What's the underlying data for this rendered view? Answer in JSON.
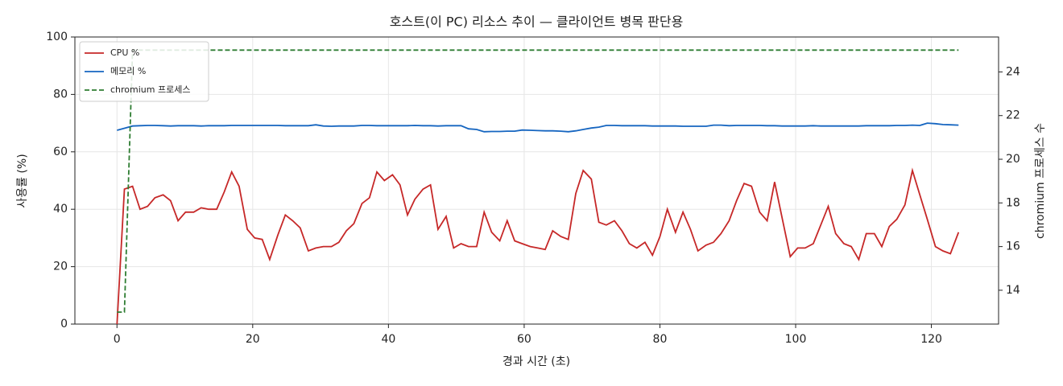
{
  "chart_data": {
    "type": "line",
    "title": "호스트(이 PC) 리소스 추이 — 클라이언트 병목 판단용",
    "x_label": "경과 시간 (초)",
    "y_label": "사용률 (%)",
    "y2_label": "chromium 프로세스 수",
    "x": [
      0,
      1.1,
      2.3,
      3.4,
      4.5,
      5.6,
      6.8,
      7.9,
      9.0,
      10.1,
      11.3,
      12.4,
      13.5,
      14.7,
      15.8,
      16.9,
      18.0,
      19.2,
      20.3,
      21.4,
      22.5,
      23.7,
      24.8,
      25.9,
      27.0,
      28.2,
      29.3,
      30.4,
      31.6,
      32.7,
      33.8,
      34.9,
      36.1,
      37.2,
      38.3,
      39.4,
      40.6,
      41.7,
      42.8,
      43.9,
      45.1,
      46.2,
      47.3,
      48.5,
      49.6,
      50.7,
      51.8,
      53.0,
      54.1,
      55.2,
      56.4,
      57.5,
      58.6,
      59.7,
      60.9,
      62.0,
      63.1,
      64.2,
      65.4,
      66.5,
      67.6,
      68.7,
      69.9,
      71.0,
      72.1,
      73.3,
      74.4,
      75.5,
      76.6,
      77.8,
      78.9,
      80.0,
      81.1,
      82.3,
      83.4,
      84.5,
      85.6,
      86.8,
      87.9,
      89.0,
      90.2,
      91.3,
      92.4,
      93.5,
      94.7,
      95.8,
      96.9,
      98.0,
      99.2,
      100.3,
      101.4,
      102.6,
      103.7,
      104.8,
      105.9,
      107.1,
      108.2,
      109.3,
      110.4,
      111.6,
      112.7,
      113.8,
      114.9,
      116.1,
      117.2,
      118.3,
      119.4,
      120.6,
      121.7,
      122.8,
      124.0
    ],
    "series": [
      {
        "name": "CPU %",
        "color": "#c62828",
        "style": "solid",
        "values": [
          0,
          47,
          48,
          40,
          41,
          44,
          45,
          43,
          36,
          39,
          39,
          40.5,
          40,
          40,
          46,
          53,
          48,
          33,
          30,
          29.5,
          22.5,
          31,
          38,
          36,
          33.5,
          25.5,
          26.5,
          27,
          27,
          28.5,
          32.5,
          35,
          42,
          44,
          53,
          50,
          52,
          48.5,
          38,
          43.5,
          47,
          48.5,
          33,
          37.5,
          26.5,
          28,
          27,
          27,
          39,
          32,
          29,
          36,
          29,
          28,
          27,
          26.5,
          26,
          32.5,
          30.5,
          29.5,
          45.5,
          53.5,
          50.5,
          35.5,
          34.5,
          36,
          32.5,
          28,
          26.5,
          28.5,
          24,
          30.5,
          40,
          32,
          39,
          33,
          25.5,
          27.5,
          28.5,
          31.5,
          36,
          43,
          49,
          48,
          39,
          36,
          49.5,
          37,
          23.5,
          26.5,
          26.5,
          28,
          34.5,
          41,
          31.5,
          28,
          27,
          22.5,
          31.5,
          31.5,
          27,
          34,
          36.5,
          41.5,
          53.5,
          45,
          36.5,
          27,
          25.5,
          24.5,
          32
        ]
      },
      {
        "name": "메모리 %",
        "color": "#1565c0",
        "style": "solid",
        "values": [
          67.5,
          68.2,
          69,
          69.1,
          69.2,
          69.2,
          69.1,
          69,
          69.1,
          69.1,
          69.1,
          69,
          69.1,
          69.1,
          69.1,
          69.2,
          69.2,
          69.2,
          69.2,
          69.2,
          69.2,
          69.2,
          69.1,
          69.1,
          69.1,
          69.1,
          69.4,
          69,
          68.9,
          69,
          69,
          69,
          69.2,
          69.2,
          69.1,
          69.1,
          69.1,
          69.1,
          69.1,
          69.2,
          69.1,
          69.1,
          69,
          69.1,
          69.1,
          69.1,
          68,
          67.8,
          67,
          67.1,
          67.1,
          67.2,
          67.2,
          67.6,
          67.5,
          67.4,
          67.3,
          67.3,
          67.2,
          67,
          67.3,
          67.8,
          68.3,
          68.6,
          69.2,
          69.2,
          69.1,
          69.1,
          69.1,
          69.1,
          69,
          69,
          69,
          69,
          68.9,
          68.9,
          68.9,
          68.9,
          69.3,
          69.3,
          69.1,
          69.2,
          69.2,
          69.2,
          69.2,
          69.1,
          69.1,
          69,
          69,
          69,
          69,
          69.1,
          69,
          69,
          69,
          69,
          69,
          69,
          69.1,
          69.1,
          69.1,
          69.1,
          69.2,
          69.2,
          69.3,
          69.2,
          70,
          69.8,
          69.5,
          69.4,
          69.3
        ]
      },
      {
        "name": "chromium 프로세스",
        "color": "#2e7d32",
        "style": "dashed",
        "axis": "y2",
        "values": [
          13,
          13,
          25,
          25,
          25,
          25,
          25,
          25,
          25,
          25,
          25,
          25,
          25,
          25,
          25,
          25,
          25,
          25,
          25,
          25,
          25,
          25,
          25,
          25,
          25,
          25,
          25,
          25,
          25,
          25,
          25,
          25,
          25,
          25,
          25,
          25,
          25,
          25,
          25,
          25,
          25,
          25,
          25,
          25,
          25,
          25,
          25,
          25,
          25,
          25,
          25,
          25,
          25,
          25,
          25,
          25,
          25,
          25,
          25,
          25,
          25,
          25,
          25,
          25,
          25,
          25,
          25,
          25,
          25,
          25,
          25,
          25,
          25,
          25,
          25,
          25,
          25,
          25,
          25,
          25,
          25,
          25,
          25,
          25,
          25,
          25,
          25,
          25,
          25,
          25,
          25,
          25,
          25,
          25,
          25,
          25,
          25,
          25,
          25,
          25,
          25,
          25,
          25,
          25,
          25,
          25,
          25,
          25,
          25,
          25,
          25
        ]
      }
    ],
    "xlim": [
      -6.2,
      129.9
    ],
    "xticks": [
      0,
      20,
      40,
      60,
      80,
      100,
      120
    ],
    "ylim": [
      0,
      100
    ],
    "yticks": [
      0,
      20,
      40,
      60,
      80,
      100
    ],
    "y2lim": [
      12.45,
      25.6
    ],
    "y2ticks": [
      14,
      16,
      18,
      20,
      22,
      24
    ],
    "grid": true,
    "legend": "upper left"
  }
}
